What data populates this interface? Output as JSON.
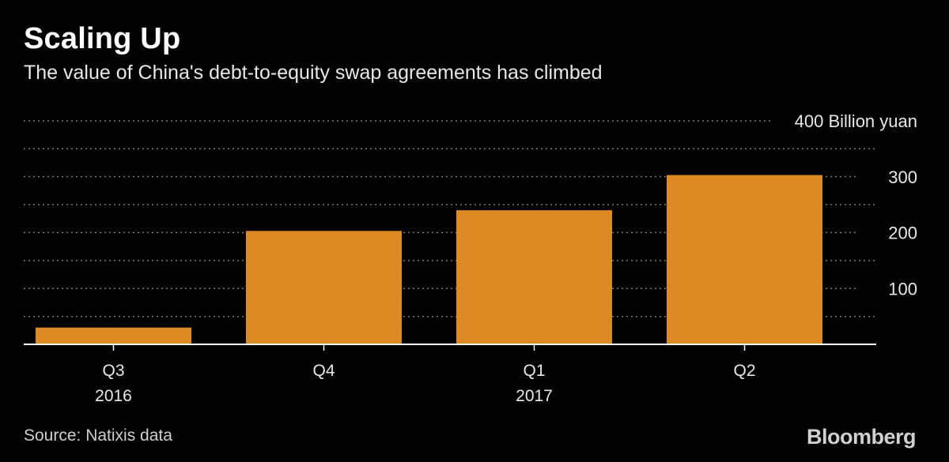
{
  "header": {
    "title": "Scaling Up",
    "subtitle": "The value of China's debt-to-equity swap agreements has climbed"
  },
  "footer": {
    "source": "Source: Natixis data",
    "brand": "Bloomberg"
  },
  "colors": {
    "background": "#000000",
    "bar": "#de8a24",
    "grid": "#7a7a7a",
    "text": "#ffffff"
  },
  "chart_data": {
    "type": "bar",
    "categories": [
      "Q3",
      "Q4",
      "Q1",
      "Q2"
    ],
    "year_labels": [
      "2016",
      "",
      "2017",
      ""
    ],
    "values": [
      30,
      203,
      240,
      303
    ],
    "unit": "Billion yuan",
    "ylim": [
      0,
      400
    ],
    "yticks": [
      {
        "value": 100,
        "label": "100"
      },
      {
        "value": 200,
        "label": "200"
      },
      {
        "value": 300,
        "label": "300"
      },
      {
        "value": 400,
        "label": "400 Billion yuan"
      }
    ],
    "grid": true,
    "grid_style": "dotted"
  }
}
